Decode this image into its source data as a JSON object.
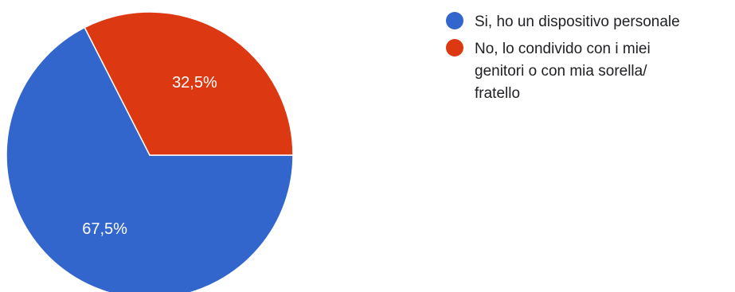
{
  "chart_data": {
    "type": "pie",
    "title": "",
    "categories": [
      "Si, ho un dispositivo personale",
      "No, lo condivido con i miei genitori o con mia sorella/ fratello"
    ],
    "values": [
      67.5,
      32.5
    ],
    "labels": [
      "67,5%",
      "32,5%"
    ],
    "colors": [
      "#3366cc",
      "#dc3912"
    ],
    "legend_position": "right"
  }
}
